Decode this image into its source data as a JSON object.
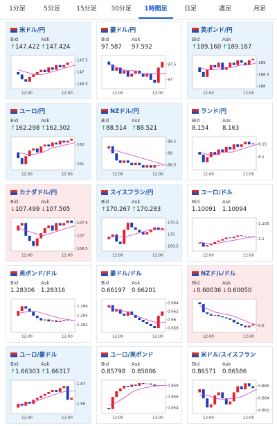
{
  "tabs": {
    "items": [
      "1分足",
      "5分足",
      "15分足",
      "30分足",
      "1時間足",
      "日足",
      "週足",
      "月足"
    ],
    "active": 4
  },
  "style": {
    "up_color": "#e0202a",
    "down_color": "#1a3fb5",
    "ma_color": "#d03ad0"
  },
  "cards": [
    {
      "title": "米ドル/円",
      "bid_label": "Bid",
      "ask_label": "Ask",
      "bid": "147.422",
      "ask": "147.424",
      "trend": "up",
      "chart": {
        "ylim": [
          146.3,
          147.7
        ],
        "yticks": [
          147.5,
          147,
          146.5
        ],
        "xticks": [
          "12:00",
          "12:00"
        ],
        "closes": [
          147.0,
          146.9,
          146.7,
          146.6,
          146.8,
          146.9,
          147.0,
          147.1,
          147.0,
          147.2,
          147.1,
          147.3,
          147.2,
          147.3,
          147.4,
          147.42
        ],
        "ma": [
          147.1,
          147.0,
          146.9,
          146.9,
          147.0,
          147.1,
          147.2,
          147.3
        ]
      }
    },
    {
      "title": "豪ドル/円",
      "bid_label": "Bid",
      "ask_label": "Ask",
      "bid": "97.587",
      "ask": "97.592",
      "trend": "none",
      "chart": {
        "ylim": [
          96.7,
          97.8
        ],
        "yticks": [
          97.5,
          97
        ],
        "xticks": [
          "12:00",
          "12:00"
        ],
        "closes": [
          97.6,
          97.5,
          97.3,
          97.4,
          97.2,
          97.3,
          97.1,
          97.2,
          97.3,
          97.2,
          97.1,
          97.2,
          97.0,
          96.9,
          97.4,
          97.59
        ],
        "ma": [
          97.5,
          97.4,
          97.3,
          97.3,
          97.2,
          97.2,
          97.2,
          97.2
        ]
      }
    },
    {
      "title": "英ポンド/円",
      "bid_label": "Bid",
      "ask_label": "Ask",
      "bid": "189.160",
      "ask": "189.167",
      "trend": "up",
      "chart": {
        "ylim": [
          187.9,
          189.3
        ],
        "yticks": [
          189,
          188.5,
          188
        ],
        "xticks": [
          "12:00",
          "12:00"
        ],
        "closes": [
          188.8,
          188.6,
          188.4,
          188.7,
          188.9,
          188.8,
          189.0,
          188.7,
          188.8,
          189.0,
          188.9,
          189.1,
          189.0,
          188.9,
          189.1,
          189.16
        ],
        "ma": [
          188.8,
          188.7,
          188.7,
          188.8,
          188.8,
          188.9,
          188.9,
          189.0
        ]
      }
    },
    {
      "title": "ユーロ/円",
      "bid_label": "Bid",
      "ask_label": "Ask",
      "bid": "162.298",
      "ask": "162.302",
      "trend": "up",
      "chart": {
        "ylim": [
          160.7,
          162.4
        ],
        "yticks": [
          162,
          161
        ],
        "xticks": [
          "12:00",
          "12:00"
        ],
        "closes": [
          161.6,
          161.3,
          161.0,
          161.4,
          161.7,
          161.8,
          161.6,
          161.9,
          162.0,
          161.9,
          162.1,
          162.0,
          162.2,
          162.1,
          162.2,
          162.3
        ],
        "ma": [
          161.6,
          161.5,
          161.5,
          161.6,
          161.8,
          161.9,
          162.0,
          162.1
        ]
      }
    },
    {
      "title": "NZドル/円",
      "bid_label": "Bid",
      "ask_label": "Ask",
      "bid": "88.514",
      "ask": "88.521",
      "trend": "up",
      "chart": {
        "ylim": [
          88.3,
          89.7
        ],
        "yticks": [
          89.5,
          89,
          88.5
        ],
        "xticks": [
          "12:00",
          "12:00"
        ],
        "closes": [
          89.2,
          89.3,
          89.0,
          88.7,
          88.6,
          88.7,
          88.6,
          88.5,
          88.6,
          88.5,
          88.4,
          88.5,
          88.4,
          88.5,
          88.5,
          88.51
        ],
        "ma": [
          89.1,
          89.1,
          89.0,
          88.9,
          88.8,
          88.7,
          88.6,
          88.5
        ]
      }
    },
    {
      "title": "ランド/円",
      "bid_label": "Bid",
      "ask_label": "Ask",
      "bid": "8.154",
      "ask": "8.163",
      "trend": "none",
      "chart": {
        "ylim": [
          8.05,
          8.18
        ],
        "yticks": [
          8.15,
          8.1
        ],
        "xticks": [
          "12:00",
          "12:00"
        ],
        "closes": [
          8.12,
          8.11,
          8.08,
          8.1,
          8.12,
          8.11,
          8.13,
          8.12,
          8.14,
          8.13,
          8.15,
          8.14,
          8.15,
          8.16,
          8.15,
          8.154
        ],
        "ma": [
          8.12,
          8.11,
          8.11,
          8.12,
          8.12,
          8.13,
          8.14,
          8.15
        ]
      }
    },
    {
      "title": "カナダドル/円",
      "bid_label": "Bid",
      "ask_label": "Ask",
      "bid": "107.499",
      "ask": "107.505",
      "trend": "down",
      "chart": {
        "ylim": [
          106.4,
          107.7
        ],
        "yticks": [
          107.5,
          107,
          106.5
        ],
        "xticks": [
          "12:00",
          "12:00"
        ],
        "closes": [
          107.2,
          107.4,
          107.5,
          107.0,
          106.8,
          106.6,
          106.9,
          107.1,
          107.3,
          107.4,
          107.2,
          107.5,
          107.4,
          107.5,
          107.6,
          107.5
        ],
        "ma": [
          107.3,
          107.2,
          107.1,
          107.0,
          107.1,
          107.2,
          107.3,
          107.4
        ]
      }
    },
    {
      "title": "スイスフラン/円",
      "bid_label": "Bid",
      "ask_label": "Ask",
      "bid": "170.267",
      "ask": "170.283",
      "trend": "up",
      "chart": {
        "ylim": [
          169.3,
          170.7
        ],
        "yticks": [
          170.5,
          170,
          169.5
        ],
        "xticks": [
          "12:00",
          "12:00"
        ],
        "closes": [
          169.8,
          169.9,
          170.0,
          169.7,
          169.6,
          170.2,
          170.5,
          170.3,
          170.2,
          170.1,
          170.0,
          170.1,
          170.2,
          170.3,
          170.2,
          170.27
        ],
        "ma": [
          169.9,
          169.9,
          169.9,
          170.0,
          170.1,
          170.2,
          170.2,
          170.2
        ]
      }
    },
    {
      "title": "ユーロ/ドル",
      "bid_label": "Bid",
      "ask_label": "Ask",
      "bid": "1.10091",
      "ask": "1.10094",
      "trend": "none",
      "chart": {
        "ylim": [
          1.096,
          1.107
        ],
        "yticks": [
          1.105,
          1.1
        ],
        "xticks": [
          "12:00",
          "12:00"
        ],
        "closes": [
          1.0985,
          1.0988,
          1.0975,
          1.098,
          1.0983,
          1.099,
          1.0995,
          1.1,
          1.1005,
          1.1003,
          1.1008,
          1.1012,
          1.101,
          1.1009,
          1.1008,
          1.1009
        ],
        "ma": [
          1.099,
          1.0985,
          1.0985,
          1.099,
          1.0995,
          1.1,
          1.1005,
          1.1008
        ]
      }
    },
    {
      "title": "英ポンド/ドル",
      "bid_label": "Bid",
      "ask_label": "Ask",
      "bid": "1.28306",
      "ask": "1.28316",
      "trend": "none",
      "chart": {
        "ylim": [
          1.2805,
          1.2875
        ],
        "yticks": [
          1.286,
          1.284,
          1.282
        ],
        "xticks": [
          "12:00",
          "12:00"
        ],
        "closes": [
          1.284,
          1.285,
          1.286,
          1.2855,
          1.2848,
          1.284,
          1.2835,
          1.283,
          1.2832,
          1.2828,
          1.283,
          1.2827,
          1.2829,
          1.2831,
          1.283,
          1.2831
        ],
        "ma": [
          1.2845,
          1.2848,
          1.285,
          1.2845,
          1.284,
          1.2835,
          1.2832,
          1.283
        ]
      }
    },
    {
      "title": "豪ドル/ドル",
      "bid_label": "Bid",
      "ask_label": "Ask",
      "bid": "0.66197",
      "ask": "0.66201",
      "trend": "none",
      "chart": {
        "ylim": [
          0.657,
          0.665
        ],
        "yticks": [
          0.664,
          0.662,
          0.66,
          0.658
        ],
        "xticks": [
          "12:00",
          "12:00"
        ],
        "closes": [
          0.663,
          0.6635,
          0.662,
          0.6625,
          0.6615,
          0.661,
          0.662,
          0.6612,
          0.6605,
          0.66,
          0.6595,
          0.659,
          0.6585,
          0.658,
          0.661,
          0.662
        ],
        "ma": [
          0.663,
          0.6625,
          0.662,
          0.6612,
          0.6605,
          0.6598,
          0.6592,
          0.6595
        ]
      }
    },
    {
      "title": "NZドル/ドル",
      "bid_label": "Bid",
      "ask_label": "Ask",
      "bid": "0.60036",
      "ask": "0.60050",
      "trend": "down",
      "chart": {
        "ylim": [
          0.598,
          0.608
        ],
        "yticks": [
          0.6
        ],
        "xticks": [
          "12:00",
          "12:00"
        ],
        "closes": [
          0.607,
          0.6065,
          0.604,
          0.6035,
          0.603,
          0.6032,
          0.6028,
          0.6025,
          0.6022,
          0.6018,
          0.601,
          0.6005,
          0.6,
          0.5995,
          0.6,
          0.6004
        ],
        "ma": [
          0.606,
          0.605,
          0.604,
          0.6035,
          0.603,
          0.602,
          0.601,
          0.6003
        ]
      }
    },
    {
      "title": "ユーロ/豪ドル",
      "bid_label": "Bid",
      "ask_label": "Ask",
      "bid": "1.66303",
      "ask": "1.66317",
      "trend": "up",
      "chart": {
        "ylim": [
          1.655,
          1.672
        ],
        "yticks": [
          1.67,
          1.66
        ],
        "xticks": [
          "12:00",
          "12:00"
        ],
        "closes": [
          1.658,
          1.66,
          1.659,
          1.661,
          1.66,
          1.662,
          1.663,
          1.664,
          1.665,
          1.666,
          1.667,
          1.666,
          1.668,
          1.669,
          1.662,
          1.663
        ],
        "ma": [
          1.659,
          1.66,
          1.661,
          1.6625,
          1.664,
          1.6655,
          1.6665,
          1.6665
        ]
      }
    },
    {
      "title": "ユーロ/英ポンド",
      "bid_label": "Bid",
      "ask_label": "Ask",
      "bid": "0.85798",
      "ask": "0.85806",
      "trend": "none",
      "chart": {
        "ylim": [
          0.853,
          0.859
        ],
        "yticks": [
          0.858,
          0.856,
          0.854
        ],
        "xticks": [
          "12:00",
          "12:00"
        ],
        "closes": [
          0.854,
          0.8538,
          0.856,
          0.857,
          0.8575,
          0.858,
          0.8578,
          0.8582,
          0.858,
          0.8585,
          0.8583,
          0.8584,
          0.8582,
          0.858,
          0.8581,
          0.858
        ],
        "ma": [
          0.8545,
          0.855,
          0.856,
          0.857,
          0.8575,
          0.8578,
          0.858,
          0.8581
        ]
      }
    },
    {
      "title": "米ドル/スイスフラン",
      "bid_label": "Bid",
      "ask_label": "Ask",
      "bid": "0.86571",
      "ask": "0.86586",
      "trend": "none",
      "chart": {
        "ylim": [
          0.8615,
          0.867
        ],
        "yticks": [
          0.866,
          0.864,
          0.862
        ],
        "xticks": [
          "12:00",
          "12:00"
        ],
        "closes": [
          0.865,
          0.8655,
          0.864,
          0.8625,
          0.863,
          0.8645,
          0.865,
          0.864,
          0.863,
          0.8635,
          0.865,
          0.866,
          0.8655,
          0.8665,
          0.866,
          0.8657
        ],
        "ma": [
          0.8645,
          0.8645,
          0.864,
          0.8638,
          0.864,
          0.8642,
          0.8648,
          0.8655
        ]
      }
    }
  ]
}
